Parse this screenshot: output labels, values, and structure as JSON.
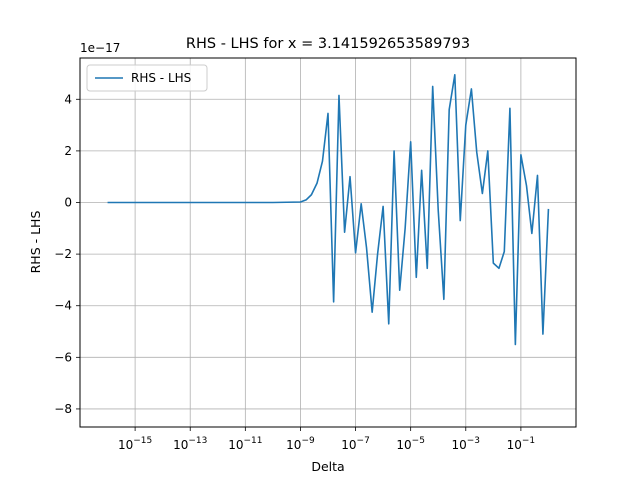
{
  "chart_data": {
    "type": "line",
    "title": "RHS - LHS for x = 3.141592653589793",
    "xlabel": "Delta",
    "ylabel": "RHS - LHS",
    "y_multiplier_label": "1e−17",
    "x_scale": "log",
    "xlim": [
      1e-17,
      10
    ],
    "ylim": [
      -8.7,
      5.6
    ],
    "x_ticks": [
      {
        "base": "10",
        "exp": "−15",
        "value": 1e-15
      },
      {
        "base": "10",
        "exp": "−13",
        "value": 1e-13
      },
      {
        "base": "10",
        "exp": "−11",
        "value": 1e-11
      },
      {
        "base": "10",
        "exp": "−9",
        "value": 1e-09
      },
      {
        "base": "10",
        "exp": "−7",
        "value": 1e-07
      },
      {
        "base": "10",
        "exp": "−5",
        "value": 1e-05
      },
      {
        "base": "10",
        "exp": "−3",
        "value": 0.001
      },
      {
        "base": "10",
        "exp": "−1",
        "value": 0.1
      }
    ],
    "y_ticks": [
      {
        "label": "4",
        "value": 4
      },
      {
        "label": "2",
        "value": 2
      },
      {
        "label": "0",
        "value": 0
      },
      {
        "label": "−2",
        "value": -2
      },
      {
        "label": "−4",
        "value": -4
      },
      {
        "label": "−6",
        "value": -6
      },
      {
        "label": "−8",
        "value": -8
      }
    ],
    "grid": true,
    "legend_position": "top-left",
    "series": [
      {
        "name": "RHS - LHS",
        "color": "#1f77b4",
        "x": [
          1e-16,
          1e-15,
          1e-14,
          1e-13,
          1e-12,
          1e-11,
          1e-10,
          1e-09,
          1.6e-09,
          2.5e-09,
          4e-09,
          6.3e-09,
          1e-08,
          1.6e-08,
          2.5e-08,
          4e-08,
          6.3e-08,
          1e-07,
          1.6e-07,
          2.5e-07,
          4e-07,
          6.3e-07,
          1e-06,
          1.6e-06,
          2.5e-06,
          4e-06,
          6.3e-06,
          1e-05,
          1.6e-05,
          2.5e-05,
          4e-05,
          6.3e-05,
          0.0001,
          0.00016,
          0.00025,
          0.0004,
          0.00063,
          0.001,
          0.0016,
          0.0025,
          0.004,
          0.0063,
          0.01,
          0.016,
          0.025,
          0.04,
          0.063,
          0.1,
          0.16,
          0.25,
          0.4,
          0.63,
          1.0
        ],
        "y": [
          0,
          0,
          0,
          0,
          0,
          0,
          0,
          0.02,
          0.1,
          0.3,
          0.75,
          1.6,
          3.45,
          -3.85,
          4.15,
          -1.15,
          1.0,
          -1.95,
          -0.05,
          -1.75,
          -4.25,
          -2.0,
          -0.15,
          -4.7,
          2.0,
          -3.4,
          -1.0,
          2.35,
          -2.9,
          1.25,
          -2.55,
          4.5,
          -0.3,
          -3.75,
          3.6,
          4.95,
          -0.7,
          3.0,
          4.4,
          1.95,
          0.35,
          2.0,
          -2.35,
          -2.55,
          -1.9,
          3.65,
          -5.5,
          1.85,
          0.65,
          -1.2,
          1.05,
          -5.1,
          -0.25
        ]
      }
    ]
  }
}
